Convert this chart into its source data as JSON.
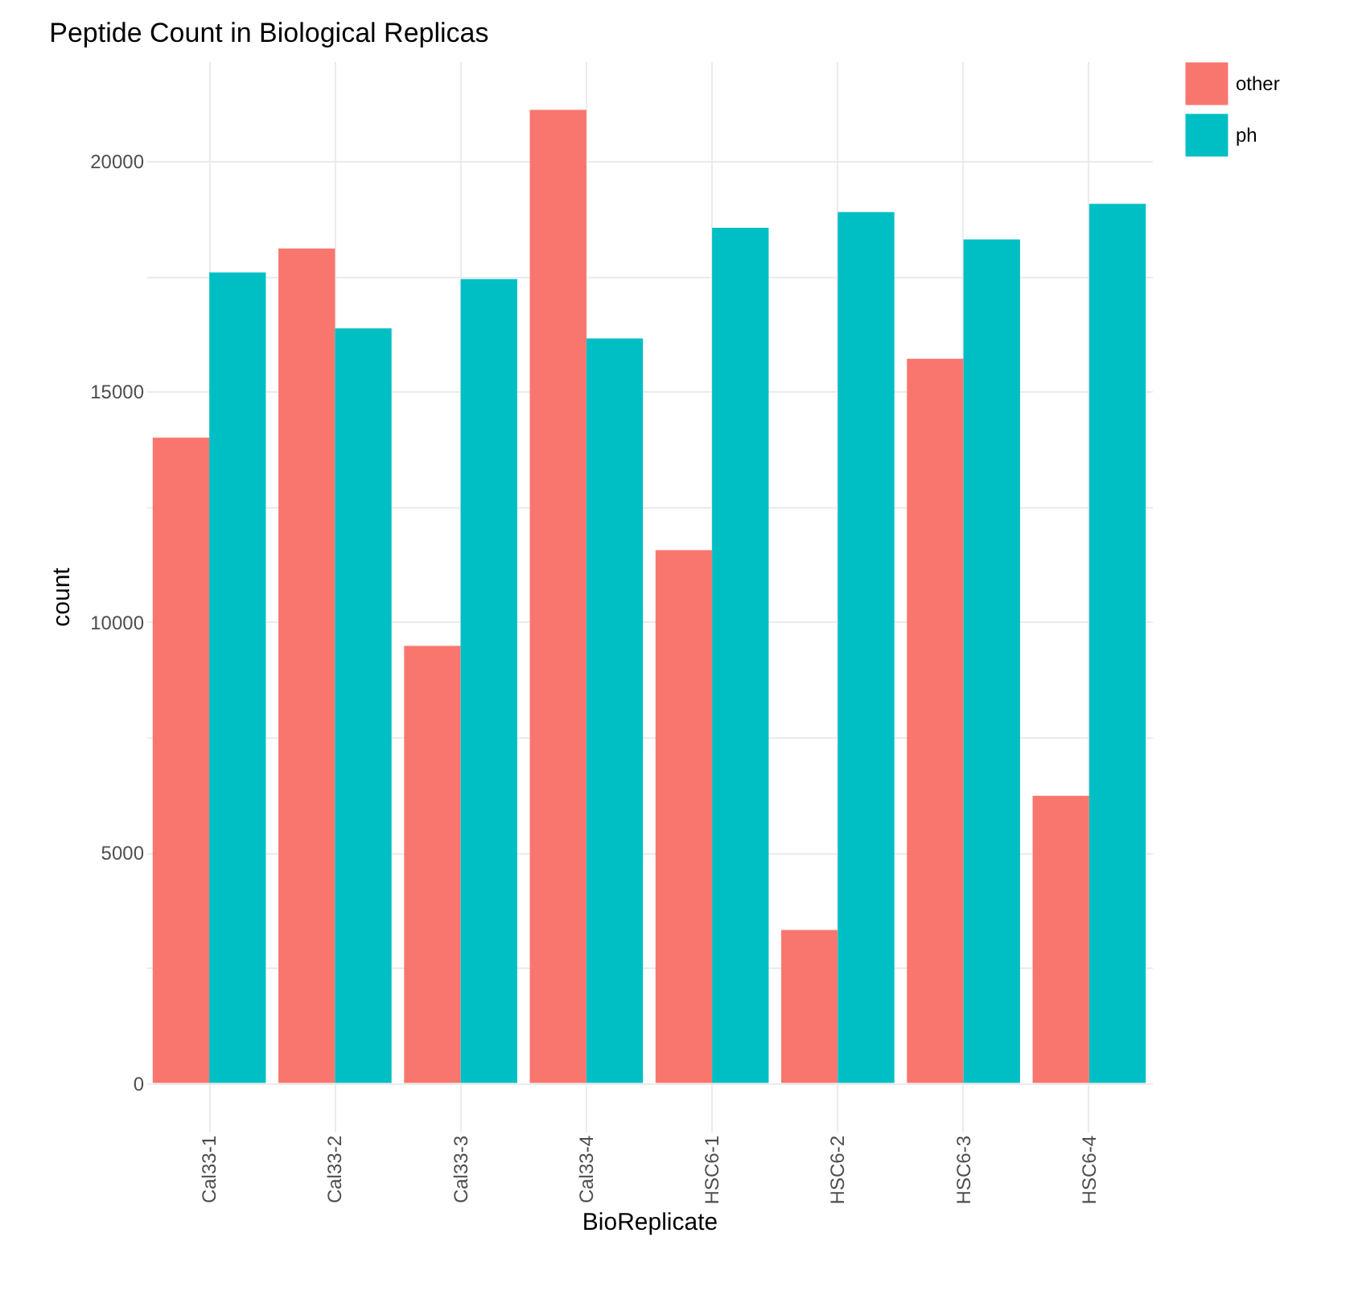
{
  "chart_data": {
    "type": "bar",
    "title": "Peptide Count in Biological Replicas",
    "xlabel": "BioReplicate",
    "ylabel": "count",
    "categories": [
      "Cal33-1",
      "Cal33-2",
      "Cal33-3",
      "Cal33-4",
      "HSC6-1",
      "HSC6-2",
      "HSC6-3",
      "HSC6-4"
    ],
    "series": [
      {
        "name": "other",
        "color": "#f8766d",
        "values": [
          14000,
          18100,
          9480,
          21110,
          11560,
          3320,
          15710,
          6230
        ]
      },
      {
        "name": "ph",
        "color": "#00bfc4",
        "values": [
          17580,
          16370,
          17440,
          16150,
          18550,
          18890,
          18300,
          19070
        ]
      }
    ],
    "ylim": [
      -1055,
      22165
    ],
    "yticks": [
      0,
      {
        "value": 2500,
        "label": null
      },
      5000,
      {
        "value": 7500,
        "label": null
      },
      10000,
      {
        "value": 12500,
        "label": null
      },
      15000,
      {
        "value": 17500,
        "label": null
      },
      20000
    ],
    "grid": true,
    "legend": "right"
  }
}
